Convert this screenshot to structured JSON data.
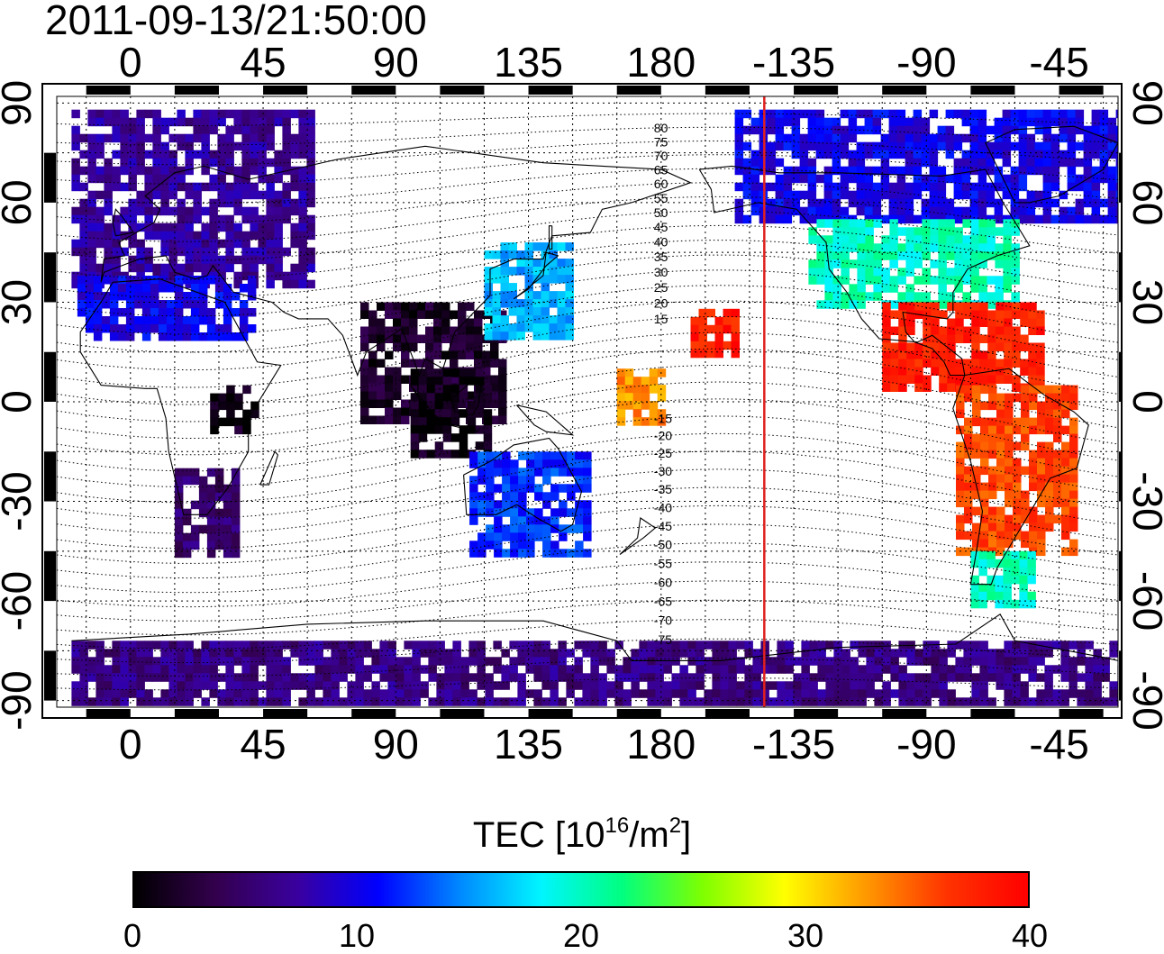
{
  "title": "2011-09-13/21:50:00",
  "map": {
    "projection": "equirectangular",
    "center_longitude": 180,
    "lon_range": [
      -25,
      335
    ],
    "lat_range": [
      -92,
      92
    ],
    "top_lon_labels": [
      "0",
      "45",
      "90",
      "135",
      "180",
      "-135",
      "-90",
      "-45"
    ],
    "bottom_lon_labels": [
      "0",
      "45",
      "90",
      "135",
      "180",
      "-135",
      "-90",
      "-45"
    ],
    "left_lat_labels": [
      "90",
      "60",
      "30",
      "0",
      "-30",
      "-60",
      "-90"
    ],
    "right_lat_labels": [
      "90",
      "60",
      "30",
      "0",
      "-30",
      "-60",
      "-90"
    ],
    "grid": "dotted, every 15 degrees",
    "magnetic_latitude_contours": true,
    "magnetic_latitude_labels": [
      "80",
      "75",
      "70",
      "65",
      "60",
      "55",
      "50",
      "45",
      "40",
      "35",
      "30",
      "25",
      "20",
      "15",
      "-15",
      "-20",
      "-25",
      "-30",
      "-35",
      "-40",
      "-45",
      "-50",
      "-55",
      "-60",
      "-65",
      "-70",
      "-75"
    ],
    "terminator_line": {
      "longitude": -145,
      "color": "#e02020"
    }
  },
  "tec_regions": [
    {
      "name": "europe",
      "lon": [
        -20,
        60
      ],
      "lat": [
        35,
        88
      ],
      "tec": 7
    },
    {
      "name": "africa-south",
      "lon": [
        15,
        35
      ],
      "lat": [
        -45,
        -20
      ],
      "tec": 5
    },
    {
      "name": "africa-central-dark",
      "lon": [
        27,
        42
      ],
      "lat": [
        -8,
        5
      ],
      "tec": 1
    },
    {
      "name": "africa-north",
      "lon": [
        -18,
        42
      ],
      "lat": [
        20,
        38
      ],
      "tec": 10
    },
    {
      "name": "asia-scatter",
      "lon": [
        78,
        125
      ],
      "lat": [
        -5,
        30
      ],
      "tec": 2
    },
    {
      "name": "indochina-dark",
      "lon": [
        95,
        120
      ],
      "lat": [
        -15,
        10
      ],
      "tec": 1
    },
    {
      "name": "japan",
      "lon": [
        120,
        150
      ],
      "lat": [
        20,
        48
      ],
      "tec": 16
    },
    {
      "name": "australia",
      "lon": [
        115,
        155
      ],
      "lat": [
        -45,
        -15
      ],
      "tec": 12
    },
    {
      "name": "pacific-mid",
      "lon": [
        165,
        180
      ],
      "lat": [
        -5,
        10
      ],
      "tec": 33
    },
    {
      "name": "hawaii",
      "lon": [
        190,
        205
      ],
      "lat": [
        15,
        28
      ],
      "tec": 38
    },
    {
      "name": "north-america-north",
      "lon": [
        205,
        335
      ],
      "lat": [
        55,
        88
      ],
      "tec": 10
    },
    {
      "name": "north-america-mid",
      "lon": [
        230,
        300
      ],
      "lat": [
        30,
        55
      ],
      "tec": 20
    },
    {
      "name": "central-america",
      "lon": [
        255,
        310
      ],
      "lat": [
        5,
        30
      ],
      "tec": 38
    },
    {
      "name": "south-america",
      "lon": [
        280,
        320
      ],
      "lat": [
        -45,
        5
      ],
      "tec": 36
    },
    {
      "name": "south-america-tip",
      "lon": [
        285,
        305
      ],
      "lat": [
        -60,
        -45
      ],
      "tec": 20
    },
    {
      "name": "antarctica",
      "lon": [
        -20,
        335
      ],
      "lat": [
        -90,
        -72
      ],
      "tec": 6
    }
  ],
  "colorbar": {
    "title_main": "TEC  [10",
    "title_sup1": "16",
    "title_mid": "/m",
    "title_sup2": "2",
    "title_end": "]",
    "min": 0,
    "max": 40,
    "tick_labels": [
      "0",
      "10",
      "20",
      "30",
      "40"
    ],
    "colors": [
      "#000000",
      "#33004d",
      "#3a009e",
      "#0000ff",
      "#0088ff",
      "#00f5ff",
      "#00ff80",
      "#7fff00",
      "#ffff00",
      "#ff9900",
      "#ff3300",
      "#ff0000"
    ]
  }
}
